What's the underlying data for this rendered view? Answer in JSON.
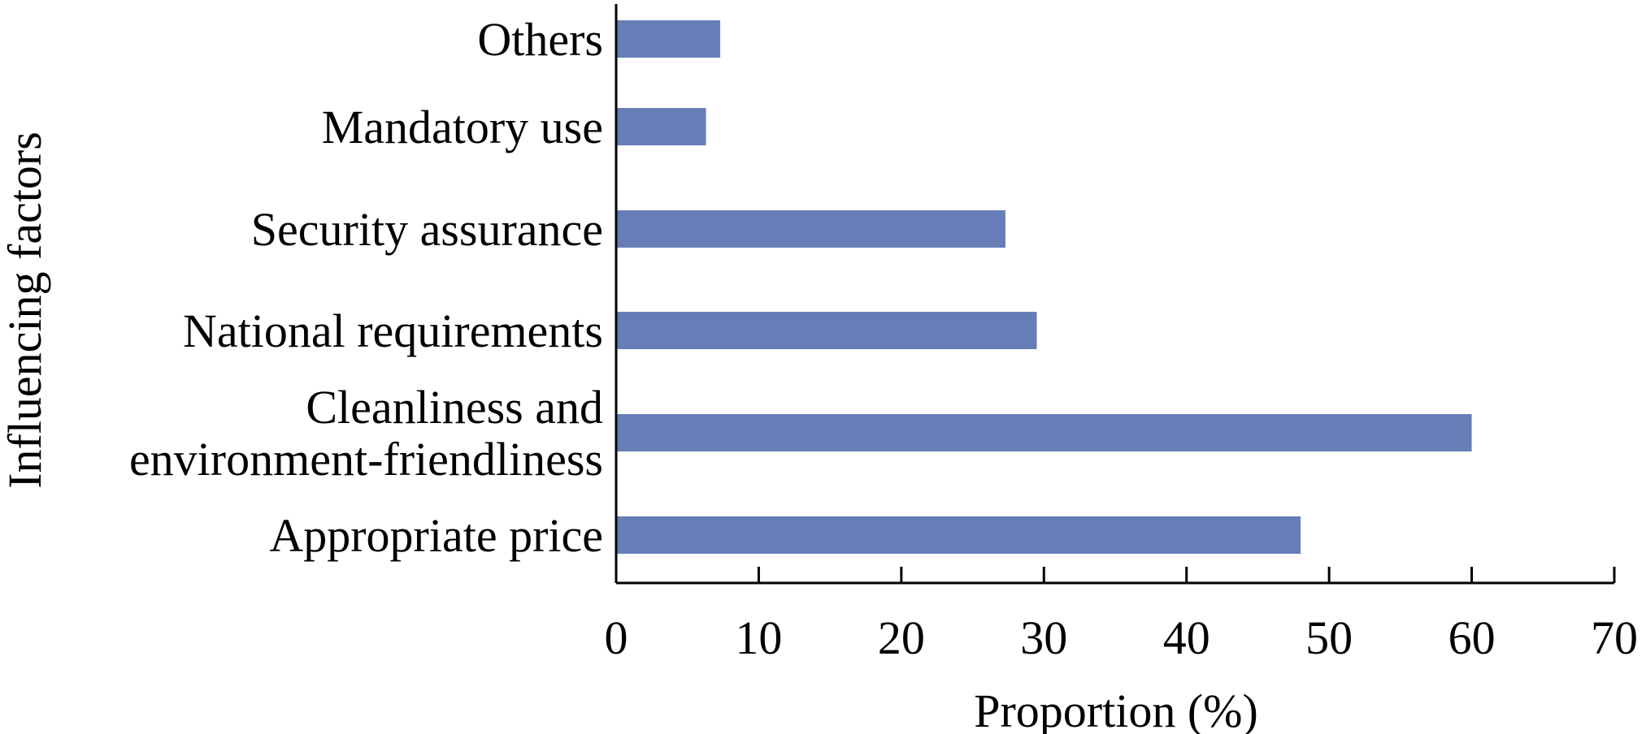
{
  "chart_data": {
    "type": "bar",
    "orientation": "horizontal",
    "categories": [
      "Others",
      "Mandatory use",
      "Security assurance",
      "National requirements",
      "Cleanliness and environment-friendliness",
      "Appropriate price"
    ],
    "category_lines": [
      [
        "Others"
      ],
      [
        "Mandatory use"
      ],
      [
        "Security assurance"
      ],
      [
        "National requirements"
      ],
      [
        "Cleanliness and",
        "environment-friendliness"
      ],
      [
        "Appropriate price"
      ]
    ],
    "values": [
      7.3,
      6.3,
      27.3,
      29.5,
      60.0,
      48.0
    ],
    "xlabel": "Proportion (%)",
    "ylabel": "Influencing factors",
    "xlim": [
      0,
      70
    ],
    "xticks": [
      0,
      10,
      20,
      30,
      40,
      50,
      60,
      70
    ],
    "xtick_labels": [
      "0",
      "10",
      "20",
      "30",
      "40",
      "50",
      "60",
      "70"
    ],
    "grid": false,
    "legend": "none",
    "bar_color": "#667db7"
  }
}
